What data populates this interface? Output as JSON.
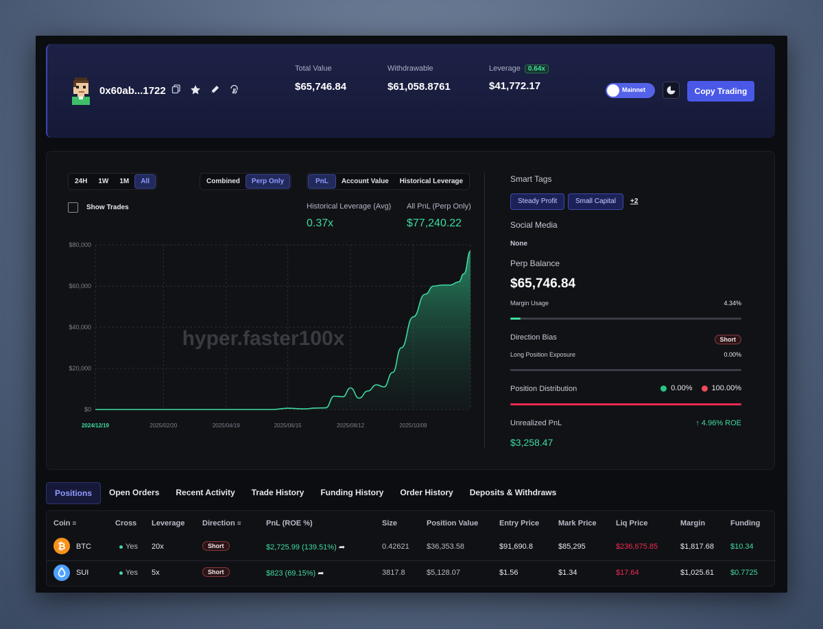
{
  "header": {
    "address": "0x60ab...1722",
    "total_value_label": "Total Value",
    "total_value": "$65,746.84",
    "withdrawable_label": "Withdrawable",
    "withdrawable": "$61,058.8761",
    "leverage_label": "Leverage",
    "leverage_badge": "0.64x",
    "leverage_value": "$41,772.17",
    "network_toggle": "Mainnet",
    "copy_trading": "Copy Trading"
  },
  "chart_controls": {
    "ranges": [
      "24H",
      "1W",
      "1M",
      "All"
    ],
    "modes": [
      "Combined",
      "Perp Only"
    ],
    "metrics": [
      "PnL",
      "Account Value",
      "Historical Leverage"
    ],
    "show_trades": "Show Trades"
  },
  "kpis": {
    "hist_lev_label": "Historical Leverage (Avg)",
    "hist_lev_value": "0.37x",
    "all_pnl_label": "All PnL (Perp Only)",
    "all_pnl_value": "$77,240.22"
  },
  "watermark": "hyper.faster100x",
  "chart_data": {
    "type": "area",
    "x": [
      "2024/12/19",
      "2025/01/20",
      "2025/02/20",
      "2025/03/20",
      "2025/04/19",
      "2025/05/15",
      "2025/06/01",
      "2025/06/15",
      "2025/07/01",
      "2025/07/10",
      "2025/07/20",
      "2025/07/28",
      "2025/08/05",
      "2025/08/12",
      "2025/08/20",
      "2025/08/28",
      "2025/09/05",
      "2025/09/12",
      "2025/09/20",
      "2025/09/28",
      "2025/10/09",
      "2025/10/20",
      "2025/10/28",
      "2025/11/05",
      "2025/11/12",
      "2025/11/20",
      "2025/11/25",
      "2025/12/01"
    ],
    "values": [
      0,
      0,
      0,
      0,
      0,
      0,
      0,
      600,
      300,
      700,
      800,
      6500,
      6200,
      10500,
      5500,
      9000,
      12000,
      11000,
      18000,
      30000,
      45000,
      56000,
      60000,
      60500,
      60500,
      62000,
      66000,
      77000
    ],
    "x_tick_labels": [
      "2024/12/19",
      "2025/02/20",
      "2025/04/19",
      "2025/06/15",
      "2025/08/12",
      "2025/10/09"
    ],
    "y_tick_labels": [
      "$0",
      "$20,000",
      "$40,000",
      "$60,000",
      "$80,000"
    ],
    "ylim": [
      0,
      80000
    ],
    "grid": true,
    "color": "#3edca0"
  },
  "right": {
    "smart_tags_title": "Smart Tags",
    "tags": [
      "Steady Profit",
      "Small Capital"
    ],
    "more_tags": "+2",
    "social_title": "Social Media",
    "social_value": "None",
    "perp_balance_title": "Perp Balance",
    "perp_balance": "$65,746.84",
    "margin_usage_label": "Margin Usage",
    "margin_usage": "4.34%",
    "margin_usage_fraction": 0.0434,
    "direction_bias_label": "Direction Bias",
    "direction_bias": "Short",
    "long_exposure_label": "Long Position Exposure",
    "long_exposure": "0.00%",
    "position_distribution_label": "Position Distribution",
    "dist_long": "0.00%",
    "dist_short": "100.00%",
    "unrealized_label": "Unrealized PnL",
    "roe": "↑ 4.96% ROE",
    "unrealized": "$3,258.47"
  },
  "tabs": [
    "Positions",
    "Open Orders",
    "Recent Activity",
    "Trade History",
    "Funding History",
    "Order History",
    "Deposits & Withdraws"
  ],
  "table": {
    "headers": [
      "Coin",
      "Cross",
      "Leverage",
      "Direction",
      "PnL (ROE %)",
      "Size",
      "Position Value",
      "Entry Price",
      "Mark Price",
      "Liq Price",
      "Margin",
      "Funding"
    ],
    "rows": [
      {
        "coin": "BTC",
        "cross": "Yes",
        "leverage": "20x",
        "direction": "Short",
        "pnl": "$2,725.99 (139.51%)",
        "size": "0.42621",
        "value": "$36,353.58",
        "entry": "$91,690.8",
        "mark": "$85,295",
        "liq": "$236,675.85",
        "margin": "$1,817.68",
        "funding": "$10.34"
      },
      {
        "coin": "SUI",
        "cross": "Yes",
        "leverage": "5x",
        "direction": "Short",
        "pnl": "$823 (69.15%)",
        "size": "3817.8",
        "value": "$5,128.07",
        "entry": "$1.56",
        "mark": "$1.34",
        "liq": "$17.64",
        "margin": "$1,025.61",
        "funding": "$0.7725"
      }
    ]
  }
}
